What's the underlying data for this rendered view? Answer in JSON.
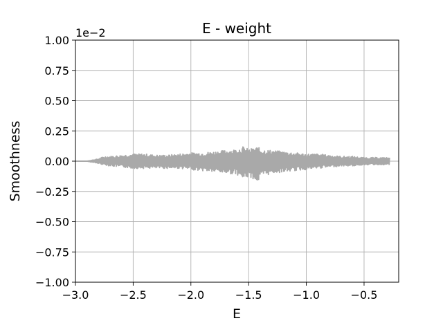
{
  "chart_data": {
    "type": "line",
    "title": "E - weight",
    "xlabel": "E",
    "ylabel": "Smoothness",
    "y_scale_offset_text": "1e−2",
    "xlim": [
      -3.0,
      -0.2
    ],
    "ylim": [
      -1.0,
      1.0
    ],
    "xticks": [
      -3.0,
      -2.5,
      -2.0,
      -1.5,
      -1.0,
      -0.5
    ],
    "xtick_labels": [
      "−3.0",
      "−2.5",
      "−2.0",
      "−1.5",
      "−1.0",
      "−0.5"
    ],
    "yticks": [
      -1.0,
      -0.75,
      -0.5,
      -0.25,
      0.0,
      0.25,
      0.5,
      0.75,
      1.0
    ],
    "ytick_labels": [
      "−1.00",
      "−0.75",
      "−0.50",
      "−0.25",
      "0.00",
      "0.25",
      "0.50",
      "0.75",
      "1.00"
    ],
    "grid": true,
    "legend": false,
    "series_color": "#a9a9a9",
    "series": [
      {
        "x": [
          -3.0,
          -2.9,
          -2.85,
          -2.8,
          -2.75,
          -2.7,
          -2.6,
          -2.5,
          -2.4,
          -2.3,
          -2.2,
          -2.1,
          -2.0,
          -1.9,
          -1.8,
          -1.7,
          -1.6,
          -1.55,
          -1.5,
          -1.45,
          -1.42,
          -1.4,
          -1.3,
          -1.2,
          -1.1,
          -1.0,
          -0.9,
          -0.8,
          -0.7,
          -0.6,
          -0.5,
          -0.4,
          -0.3,
          -0.28
        ],
        "upper": [
          0.0,
          0.0,
          0.01,
          0.02,
          0.04,
          0.04,
          0.05,
          0.06,
          0.06,
          0.05,
          0.05,
          0.06,
          0.07,
          0.07,
          0.08,
          0.09,
          0.1,
          0.12,
          0.1,
          0.11,
          0.12,
          0.1,
          0.09,
          0.08,
          0.07,
          0.06,
          0.06,
          0.05,
          0.04,
          0.04,
          0.03,
          0.03,
          0.03,
          0.03
        ],
        "lower": [
          0.0,
          0.0,
          -0.01,
          -0.02,
          -0.03,
          -0.04,
          -0.05,
          -0.06,
          -0.06,
          -0.06,
          -0.06,
          -0.06,
          -0.07,
          -0.08,
          -0.09,
          -0.1,
          -0.11,
          -0.15,
          -0.13,
          -0.15,
          -0.18,
          -0.14,
          -0.1,
          -0.09,
          -0.08,
          -0.07,
          -0.06,
          -0.05,
          -0.04,
          -0.04,
          -0.03,
          -0.03,
          -0.03,
          -0.03
        ]
      }
    ]
  }
}
